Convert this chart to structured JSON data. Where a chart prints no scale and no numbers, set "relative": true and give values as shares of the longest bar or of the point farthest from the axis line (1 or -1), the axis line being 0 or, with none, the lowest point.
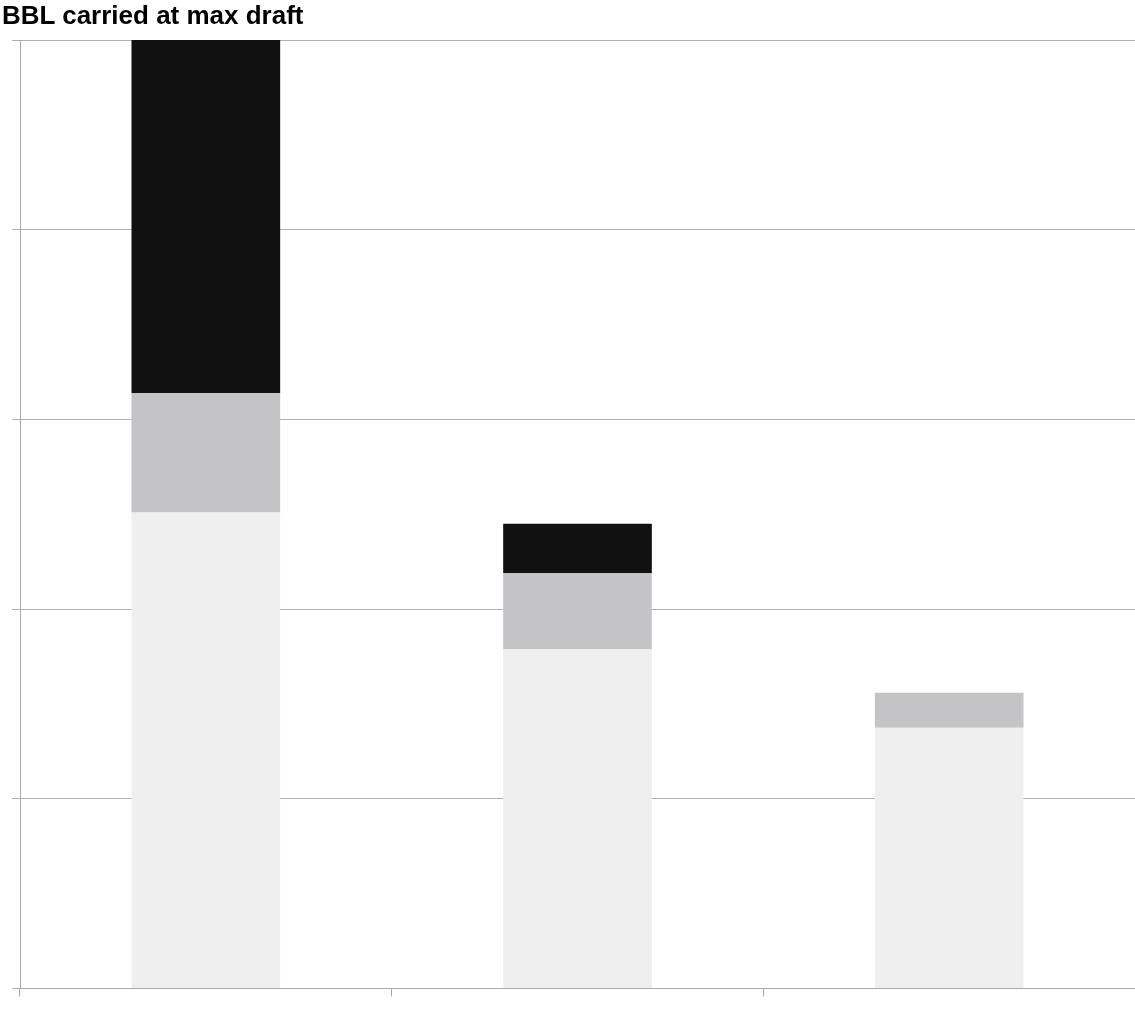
{
  "chart_data": {
    "type": "bar",
    "title": "BBL carried at max draft",
    "stacked": true,
    "relative": true,
    "grid": "y",
    "categories": [
      null,
      null,
      null
    ],
    "series": [
      {
        "color": "#efefef",
        "values": [
          0.502,
          0.358,
          0.275
        ]
      },
      {
        "color": "#c4c4c6",
        "values": [
          0.126,
          0.08,
          0.037
        ]
      },
      {
        "color": "#111111",
        "values": [
          0.372,
          0.052,
          0
        ]
      }
    ]
  }
}
